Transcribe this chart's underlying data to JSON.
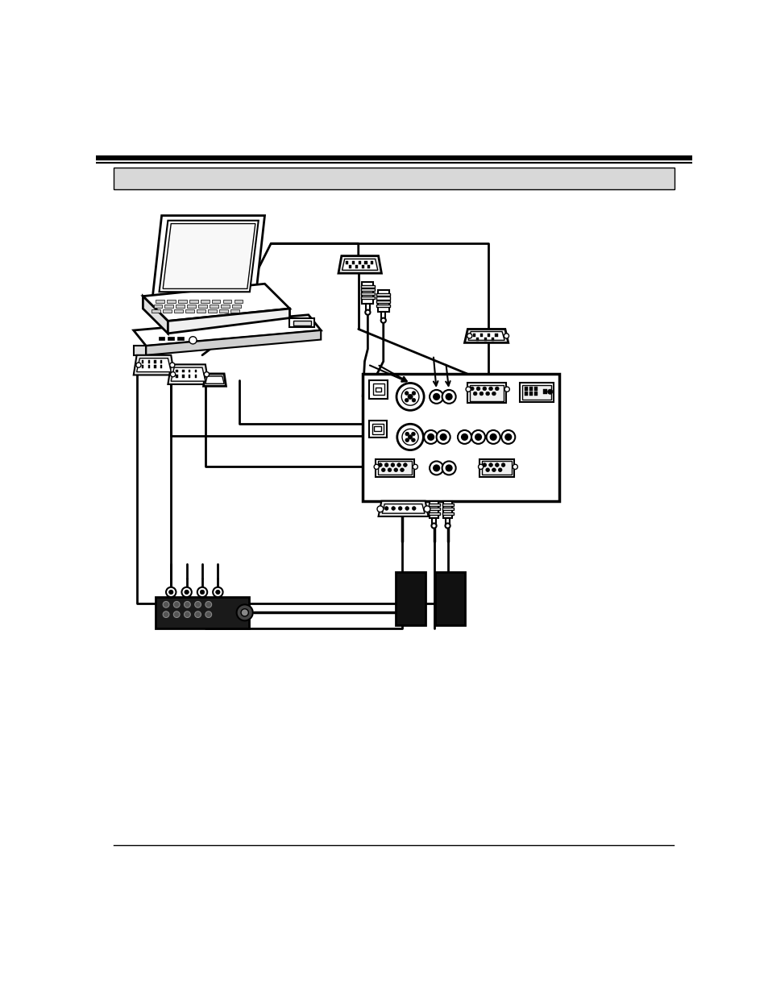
{
  "bg_color": "#ffffff",
  "page_width": 9.54,
  "page_height": 12.35
}
